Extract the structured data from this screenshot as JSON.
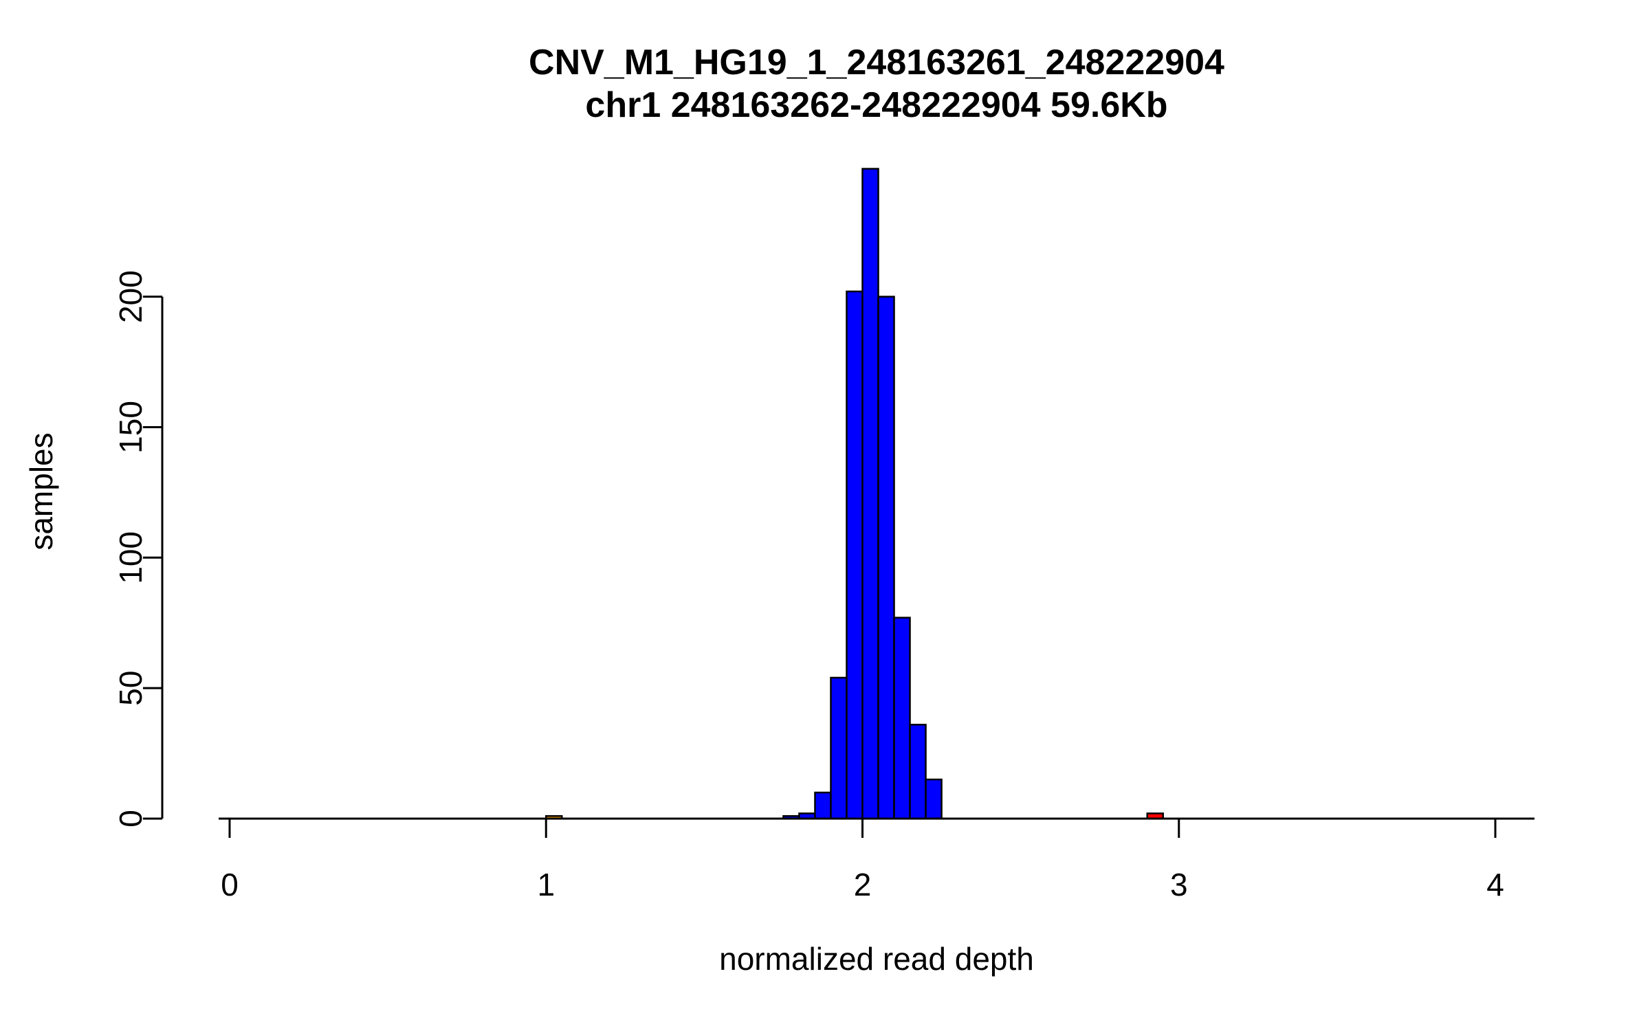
{
  "chart_data": {
    "type": "bar",
    "subtype": "histogram",
    "title": "CNV_M1_HG19_1_248163261_248222904",
    "subtitle": "chr1 248163262-248222904 59.6Kb",
    "xlabel": "normalized read depth",
    "ylabel": "samples",
    "xlim": [
      0,
      4.1
    ],
    "ylim": [
      0,
      250
    ],
    "x_ticks": [
      0,
      1,
      2,
      3,
      4
    ],
    "y_ticks": [
      0,
      50,
      100,
      150,
      200
    ],
    "grid": "off",
    "legend": "none",
    "bin_width": 0.05,
    "bars": [
      {
        "x0": 1.0,
        "count": 1,
        "color": "#FFA500"
      },
      {
        "x0": 1.75,
        "count": 1,
        "color": "#0000FF"
      },
      {
        "x0": 1.8,
        "count": 2,
        "color": "#0000FF"
      },
      {
        "x0": 1.85,
        "count": 10,
        "color": "#0000FF"
      },
      {
        "x0": 1.9,
        "count": 54,
        "color": "#0000FF"
      },
      {
        "x0": 1.95,
        "count": 202,
        "color": "#0000FF"
      },
      {
        "x0": 2.0,
        "count": 249,
        "color": "#0000FF"
      },
      {
        "x0": 2.05,
        "count": 200,
        "color": "#0000FF"
      },
      {
        "x0": 2.1,
        "count": 77,
        "color": "#0000FF"
      },
      {
        "x0": 2.15,
        "count": 36,
        "color": "#0000FF"
      },
      {
        "x0": 2.2,
        "count": 15,
        "color": "#0000FF"
      },
      {
        "x0": 2.9,
        "count": 2,
        "color": "#FF0000"
      }
    ],
    "colors": {
      "bar_normal": "#0000FF",
      "bar_deletion": "#FFA500",
      "bar_duplication": "#FF0000",
      "border": "#000000",
      "axis": "#000000",
      "background": "#FFFFFF"
    }
  }
}
